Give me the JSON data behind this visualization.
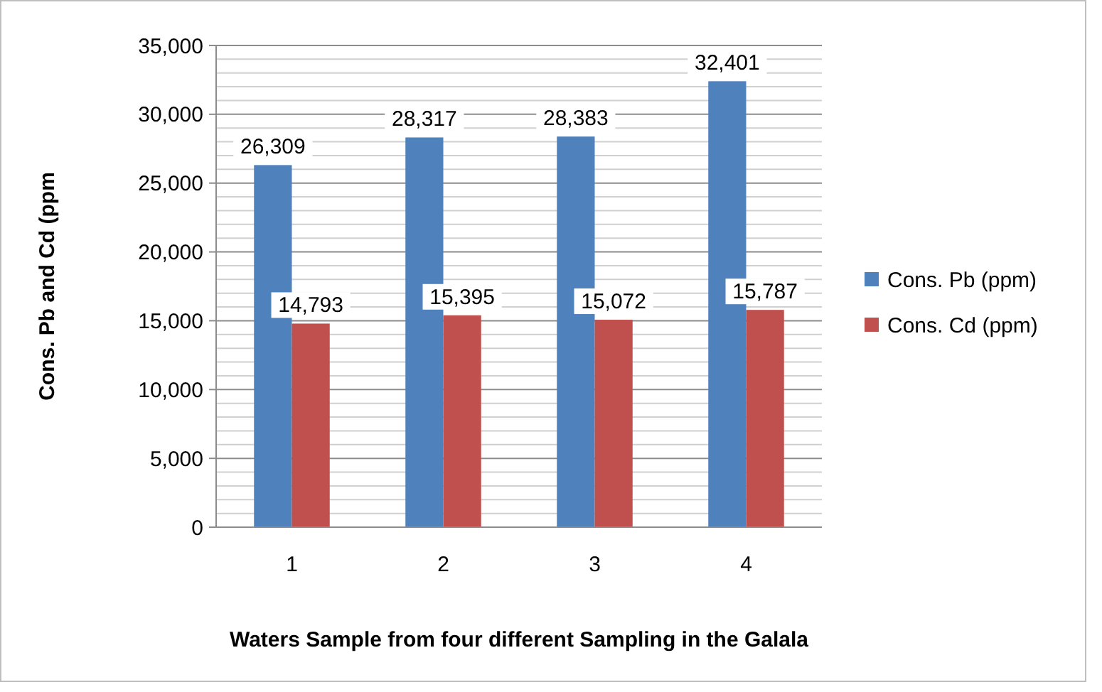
{
  "chart_data": {
    "type": "bar",
    "xlabel": "Waters Sample from four different Sampling in the Galala",
    "ylabel": "Cons. Pb and Cd (ppm",
    "categories": [
      "1",
      "2",
      "3",
      "4"
    ],
    "series": [
      {
        "name": "Cons. Pb (ppm)",
        "color": "#4f81bd",
        "values": [
          26309,
          28317,
          28383,
          32401
        ],
        "value_labels": [
          "26,309",
          "28,317",
          "28,383",
          "32,401"
        ]
      },
      {
        "name": "Cons. Cd (ppm)",
        "color": "#c0504d",
        "values": [
          14793,
          15395,
          15072,
          15787
        ],
        "value_labels": [
          "14,793",
          "15,395",
          "15,072",
          "15,787"
        ]
      }
    ],
    "ylim": [
      0,
      35000
    ],
    "yticks": [
      {
        "value": 0,
        "label": "0"
      },
      {
        "value": 1000,
        "label": null
      },
      {
        "value": 2000,
        "label": null
      },
      {
        "value": 3000,
        "label": null
      },
      {
        "value": 4000,
        "label": null
      },
      {
        "value": 5000,
        "label": "5,000"
      },
      {
        "value": 6000,
        "label": null
      },
      {
        "value": 7000,
        "label": null
      },
      {
        "value": 8000,
        "label": null
      },
      {
        "value": 9000,
        "label": null
      },
      {
        "value": 10000,
        "label": "10,000"
      },
      {
        "value": 11000,
        "label": null
      },
      {
        "value": 12000,
        "label": null
      },
      {
        "value": 13000,
        "label": null
      },
      {
        "value": 14000,
        "label": null
      },
      {
        "value": 15000,
        "label": "15,000"
      },
      {
        "value": 16000,
        "label": null
      },
      {
        "value": 17000,
        "label": null
      },
      {
        "value": 18000,
        "label": null
      },
      {
        "value": 19000,
        "label": null
      },
      {
        "value": 20000,
        "label": "20,000"
      },
      {
        "value": 21000,
        "label": null
      },
      {
        "value": 22000,
        "label": null
      },
      {
        "value": 23000,
        "label": null
      },
      {
        "value": 24000,
        "label": null
      },
      {
        "value": 25000,
        "label": "25,000"
      },
      {
        "value": 26000,
        "label": null
      },
      {
        "value": 27000,
        "label": null
      },
      {
        "value": 28000,
        "label": null
      },
      {
        "value": 29000,
        "label": null
      },
      {
        "value": 30000,
        "label": "30,000"
      },
      {
        "value": 31000,
        "label": null
      },
      {
        "value": 32000,
        "label": null
      },
      {
        "value": 33000,
        "label": null
      },
      {
        "value": 34000,
        "label": null
      },
      {
        "value": 35000,
        "label": "35,000"
      }
    ],
    "grid": "y",
    "legend": "right"
  }
}
